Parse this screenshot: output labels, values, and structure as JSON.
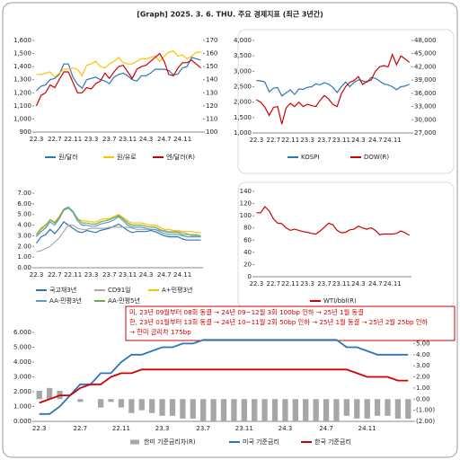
{
  "title": "[Graph] 2025. 3. 6. THU. 주요 경제지표 (최근 3년간)",
  "chart_data": [
    {
      "type": "line",
      "categories": [
        "22.3",
        null,
        null,
        null,
        "22.7",
        null,
        null,
        null,
        "22.11",
        null,
        null,
        null,
        "23.3",
        null,
        null,
        null,
        "23.7",
        null,
        null,
        null,
        "23.11",
        null,
        null,
        null,
        "24.3",
        null,
        null,
        null,
        "24.7",
        null,
        null,
        null,
        "24.11",
        null,
        null,
        null,
        null
      ],
      "ylim": [
        900,
        1600
      ],
      "yticks": [
        {
          "value": 900,
          "label": "900"
        },
        {
          "value": 1000,
          "label": "1,000"
        },
        {
          "value": 1100,
          "label": "1,100"
        },
        {
          "value": 1200,
          "label": "1,200"
        },
        {
          "value": 1300,
          "label": "1,300"
        },
        {
          "value": 1400,
          "label": "1,400"
        },
        {
          "value": 1500,
          "label": "1,500"
        },
        {
          "value": 1600,
          "label": "1,600"
        }
      ],
      "y2lim": [
        100,
        170
      ],
      "y2ticks": [
        100,
        110,
        120,
        130,
        140,
        150,
        160,
        170
      ],
      "series": [
        {
          "name": "원/달러",
          "color": "#2e75b6",
          "values": [
            1215,
            1250,
            1260,
            1300,
            1310,
            1340,
            1420,
            1420,
            1320,
            1265,
            1235,
            1300,
            1310,
            1320,
            1300,
            1290,
            1270,
            1320,
            1340,
            1350,
            1330,
            1300,
            1290,
            1330,
            1330,
            1350,
            1380,
            1380,
            1380,
            1370,
            1335,
            1345,
            1390,
            1400,
            1470,
            1460,
            1450
          ]
        },
        {
          "name": "원/유로",
          "color": "#ffc000",
          "values": [
            1340,
            1340,
            1350,
            1360,
            1320,
            1350,
            1380,
            1380,
            1390,
            1380,
            1330,
            1410,
            1420,
            1440,
            1400,
            1390,
            1420,
            1440,
            1470,
            1430,
            1420,
            1420,
            1440,
            1460,
            1460,
            1470,
            1480,
            1440,
            1480,
            1510,
            1520,
            1480,
            1490,
            1460,
            1480,
            1510,
            1510
          ]
        },
        {
          "name": "엔/달러(R)",
          "color": "#d00000",
          "axis": "y2",
          "values": [
            120,
            128,
            130,
            136,
            134,
            140,
            146,
            146,
            138,
            130,
            130,
            134,
            133,
            137,
            139,
            145,
            141,
            146,
            150,
            151,
            146,
            141,
            148,
            150,
            151,
            154,
            157,
            160,
            154,
            144,
            143,
            149,
            153,
            153,
            155,
            152,
            149
          ]
        }
      ]
    },
    {
      "type": "line",
      "categories": [
        "22.3",
        null,
        null,
        null,
        "22.7",
        null,
        null,
        null,
        "22.11",
        null,
        null,
        null,
        "23.3",
        null,
        null,
        null,
        "23.7",
        null,
        null,
        null,
        "23.11",
        null,
        null,
        null,
        "24.3",
        null,
        null,
        null,
        "24.7",
        null,
        null,
        null,
        "24.11",
        null,
        null,
        null,
        null
      ],
      "ylim": [
        1000,
        4000
      ],
      "yticks": [
        {
          "value": 1000,
          "label": "1,000"
        },
        {
          "value": 1500,
          "label": "1,500"
        },
        {
          "value": 2000,
          "label": "2,000"
        },
        {
          "value": 2500,
          "label": "2,500"
        },
        {
          "value": 3000,
          "label": "3,000"
        },
        {
          "value": 3500,
          "label": "3,500"
        },
        {
          "value": 4000,
          "label": "4,000"
        }
      ],
      "y2lim": [
        27000,
        48000
      ],
      "y2ticks": [
        {
          "value": 27000,
          "label": "27,000"
        },
        {
          "value": 30000,
          "label": "30,000"
        },
        {
          "value": 33000,
          "label": "33,000"
        },
        {
          "value": 36000,
          "label": "36,000"
        },
        {
          "value": 39000,
          "label": "39,000"
        },
        {
          "value": 42000,
          "label": "42,000"
        },
        {
          "value": 45000,
          "label": "45,000"
        },
        {
          "value": 48000,
          "label": "48,000"
        }
      ],
      "series": [
        {
          "name": "KOSPI",
          "color": "#2e75b6",
          "values": [
            2700,
            2690,
            2650,
            2330,
            2450,
            2470,
            2200,
            2300,
            2400,
            2250,
            2430,
            2410,
            2480,
            2500,
            2590,
            2560,
            2630,
            2580,
            2480,
            2310,
            2500,
            2650,
            2500,
            2640,
            2720,
            2690,
            2640,
            2800,
            2770,
            2680,
            2590,
            2560,
            2500,
            2400,
            2500,
            2520,
            2580
          ]
        },
        {
          "name": "DOW(R)",
          "color": "#d00000",
          "axis": "y2",
          "values": [
            34500,
            34000,
            32900,
            31000,
            32800,
            33000,
            29000,
            32700,
            33700,
            33000,
            34000,
            33000,
            33500,
            33200,
            33000,
            34400,
            35500,
            34700,
            33500,
            33000,
            35900,
            37500,
            38500,
            38900,
            39800,
            38000,
            38700,
            39000,
            41000,
            42000,
            42300,
            42000,
            44800,
            42500,
            44500,
            43800,
            43000
          ]
        }
      ]
    },
    {
      "type": "line",
      "categories": [
        "22.3",
        null,
        null,
        null,
        "22.7",
        null,
        null,
        null,
        "22.11",
        null,
        null,
        null,
        "23.3",
        null,
        null,
        null,
        "23.7",
        null,
        null,
        null,
        "23.11",
        null,
        null,
        null,
        "24.3",
        null,
        null,
        null,
        "24.7",
        null,
        null,
        null,
        "24.11",
        null,
        null,
        null,
        null
      ],
      "ylim": [
        0,
        7
      ],
      "yticks": [
        {
          "value": 0,
          "label": "0.00"
        },
        {
          "value": 1,
          "label": "1.00"
        },
        {
          "value": 2,
          "label": "2.00"
        },
        {
          "value": 3,
          "label": "3.00"
        },
        {
          "value": 4,
          "label": "4.00"
        },
        {
          "value": 5,
          "label": "5.00"
        },
        {
          "value": 6,
          "label": "6.00"
        },
        {
          "value": 7,
          "label": "7.00"
        }
      ],
      "series": [
        {
          "name": "국고채3년",
          "color": "#2e75b6",
          "values": [
            2.3,
            2.9,
            3.1,
            3.6,
            3.2,
            3.7,
            4.3,
            4.0,
            3.7,
            3.4,
            3.3,
            3.5,
            3.4,
            3.3,
            3.5,
            3.6,
            3.7,
            3.9,
            4.1,
            3.8,
            3.5,
            3.3,
            3.4,
            3.4,
            3.4,
            3.5,
            3.4,
            3.2,
            3.0,
            2.9,
            2.9,
            2.9,
            2.7,
            2.6,
            2.6,
            2.6,
            2.6
          ]
        },
        {
          "name": "CD91일",
          "color": "#a9a9a9",
          "values": [
            1.5,
            1.6,
            1.8,
            2.0,
            2.4,
            2.8,
            3.4,
            4.0,
            4.0,
            3.7,
            3.6,
            3.6,
            3.7,
            3.7,
            3.7,
            3.7,
            3.8,
            3.8,
            3.8,
            3.8,
            3.8,
            3.7,
            3.6,
            3.6,
            3.6,
            3.6,
            3.6,
            3.5,
            3.5,
            3.4,
            3.4,
            3.4,
            3.3,
            3.2,
            3.0,
            3.0,
            2.9
          ]
        },
        {
          "name": "A+민평3년",
          "color": "#ffc000",
          "values": [
            3.0,
            3.6,
            3.8,
            4.5,
            4.3,
            4.8,
            5.5,
            5.6,
            5.2,
            4.6,
            4.4,
            4.4,
            4.3,
            4.3,
            4.5,
            4.6,
            4.6,
            4.8,
            5.0,
            4.7,
            4.4,
            4.2,
            4.2,
            4.2,
            4.1,
            4.0,
            4.0,
            3.8,
            3.6,
            3.6,
            3.5,
            3.5,
            3.4,
            3.4,
            3.4,
            3.3,
            3.3
          ]
        },
        {
          "name": "AA-민평3년",
          "color": "#5b9bd5",
          "values": [
            2.9,
            3.4,
            3.7,
            4.3,
            4.0,
            4.6,
            5.4,
            5.6,
            5.2,
            4.4,
            4.0,
            4.0,
            3.9,
            3.9,
            4.1,
            4.2,
            4.3,
            4.5,
            4.8,
            4.4,
            4.0,
            3.8,
            3.8,
            3.8,
            3.7,
            3.6,
            3.6,
            3.4,
            3.2,
            3.1,
            3.1,
            3.1,
            3.0,
            2.9,
            2.9,
            2.9,
            2.9
          ]
        },
        {
          "name": "AA-민평5년",
          "color": "#70ad47",
          "values": [
            3.1,
            3.7,
            4.0,
            4.5,
            4.2,
            4.7,
            5.5,
            5.7,
            5.3,
            4.6,
            4.2,
            4.2,
            4.1,
            4.1,
            4.3,
            4.4,
            4.5,
            4.7,
            4.9,
            4.6,
            4.2,
            4.0,
            4.0,
            4.0,
            3.9,
            3.8,
            3.8,
            3.6,
            3.4,
            3.3,
            3.3,
            3.3,
            3.1,
            3.1,
            3.1,
            3.1,
            3.0
          ]
        }
      ]
    },
    {
      "type": "line",
      "categories": [
        "22.3",
        null,
        null,
        null,
        "22.7",
        null,
        null,
        null,
        "22.11",
        null,
        null,
        null,
        "23.3",
        null,
        null,
        null,
        "23.7",
        null,
        null,
        null,
        "23.11",
        null,
        null,
        null,
        "24.3",
        null,
        null,
        null,
        "24.7",
        null,
        null,
        null,
        "24.11",
        null,
        null,
        null,
        null
      ],
      "ylim": [
        0,
        140
      ],
      "yticks": [
        0,
        20,
        40,
        60,
        80,
        100,
        120,
        140
      ],
      "series": [
        {
          "name": "WTI/bbl(R)",
          "color": "#d00000",
          "values": [
            105,
            105,
            115,
            108,
            95,
            88,
            87,
            80,
            76,
            78,
            76,
            74,
            73,
            71,
            70,
            75,
            81,
            88,
            85,
            76,
            72,
            73,
            77,
            78,
            83,
            80,
            78,
            80,
            76,
            69,
            70,
            70,
            70,
            71,
            75,
            72,
            68
          ]
        }
      ]
    },
    {
      "type": "combo",
      "categories": [
        "22.3",
        null,
        null,
        null,
        "22.7",
        null,
        null,
        null,
        "22.11",
        null,
        null,
        null,
        "23.3",
        null,
        null,
        null,
        "23.7",
        null,
        null,
        null,
        "23.11",
        null,
        null,
        null,
        "24.3",
        null,
        null,
        null,
        "24.7",
        null,
        null,
        null,
        "24.11",
        null,
        null,
        null,
        null
      ],
      "ylim": [
        0,
        6
      ],
      "yticks": [
        {
          "value": 0,
          "label": "0.000"
        },
        {
          "value": 1,
          "label": "1.000"
        },
        {
          "value": 2,
          "label": "2.000"
        },
        {
          "value": 3,
          "label": "3.000"
        },
        {
          "value": 4,
          "label": "4.000"
        },
        {
          "value": 5,
          "label": "5.000"
        },
        {
          "value": 6,
          "label": "6.000"
        }
      ],
      "y2lim": [
        -2,
        6
      ],
      "y2ticks": [
        {
          "value": -2,
          "label": "(2.00)"
        },
        {
          "value": -1,
          "label": "(1.00)"
        },
        {
          "value": 0,
          "label": "0.00"
        },
        {
          "value": 1,
          "label": "1.00"
        },
        {
          "value": 2,
          "label": "2.00"
        },
        {
          "value": 3,
          "label": "3.00"
        },
        {
          "value": 4,
          "label": "4.00"
        },
        {
          "value": 5,
          "label": "5.00"
        }
      ],
      "annotations": [
        "미, 23년 09월부터 08회 동결 → 24년 09~12월 3회 100bp 인하 → 25년 1월 동결",
        "한, 23년 01월부터 13회 동결 → 24년 10~11월 2회  50bp 인하 → 25년 1월 동결 → 25년 2월 25bp 인하",
        "→ 한미 금리차 175bp"
      ],
      "series": [
        {
          "name": "한미 기준금리차(R)",
          "color": "#a6a6a6",
          "axis": "y2",
          "kind": "bar",
          "values": [
            0.75,
            1.0,
            0.75,
            0,
            -0.25,
            0,
            -0.75,
            -0.25,
            -0.75,
            -1.25,
            -1.0,
            -1.25,
            -1.5,
            -1.5,
            -1.75,
            -1.75,
            -2,
            -2,
            -2,
            -2,
            -2,
            -2,
            -2,
            -2,
            -2,
            -2,
            -2,
            -2,
            -2,
            -2,
            -1.5,
            -1.75,
            -1.75,
            -1.5,
            -1.5,
            -1.75,
            -1.75
          ]
        },
        {
          "name": "미국 기준금리",
          "color": "#2e75b6",
          "values": [
            0.5,
            0.5,
            1.0,
            1.75,
            2.5,
            2.5,
            3.25,
            3.25,
            4.0,
            4.5,
            4.5,
            4.75,
            5.0,
            5.0,
            5.25,
            5.25,
            5.5,
            5.5,
            5.5,
            5.5,
            5.5,
            5.5,
            5.5,
            5.5,
            5.5,
            5.5,
            5.5,
            5.5,
            5.5,
            5.5,
            5.0,
            5.0,
            4.75,
            4.5,
            4.5,
            4.5,
            4.5
          ]
        },
        {
          "name": "한국 기준금리",
          "color": "#d00000",
          "values": [
            1.25,
            1.5,
            1.75,
            1.75,
            2.25,
            2.5,
            2.5,
            3.0,
            3.25,
            3.25,
            3.5,
            3.5,
            3.5,
            3.5,
            3.5,
            3.5,
            3.5,
            3.5,
            3.5,
            3.5,
            3.5,
            3.5,
            3.5,
            3.5,
            3.5,
            3.5,
            3.5,
            3.5,
            3.5,
            3.5,
            3.5,
            3.25,
            3.0,
            3.0,
            3.0,
            2.75,
            2.75
          ]
        }
      ]
    }
  ]
}
